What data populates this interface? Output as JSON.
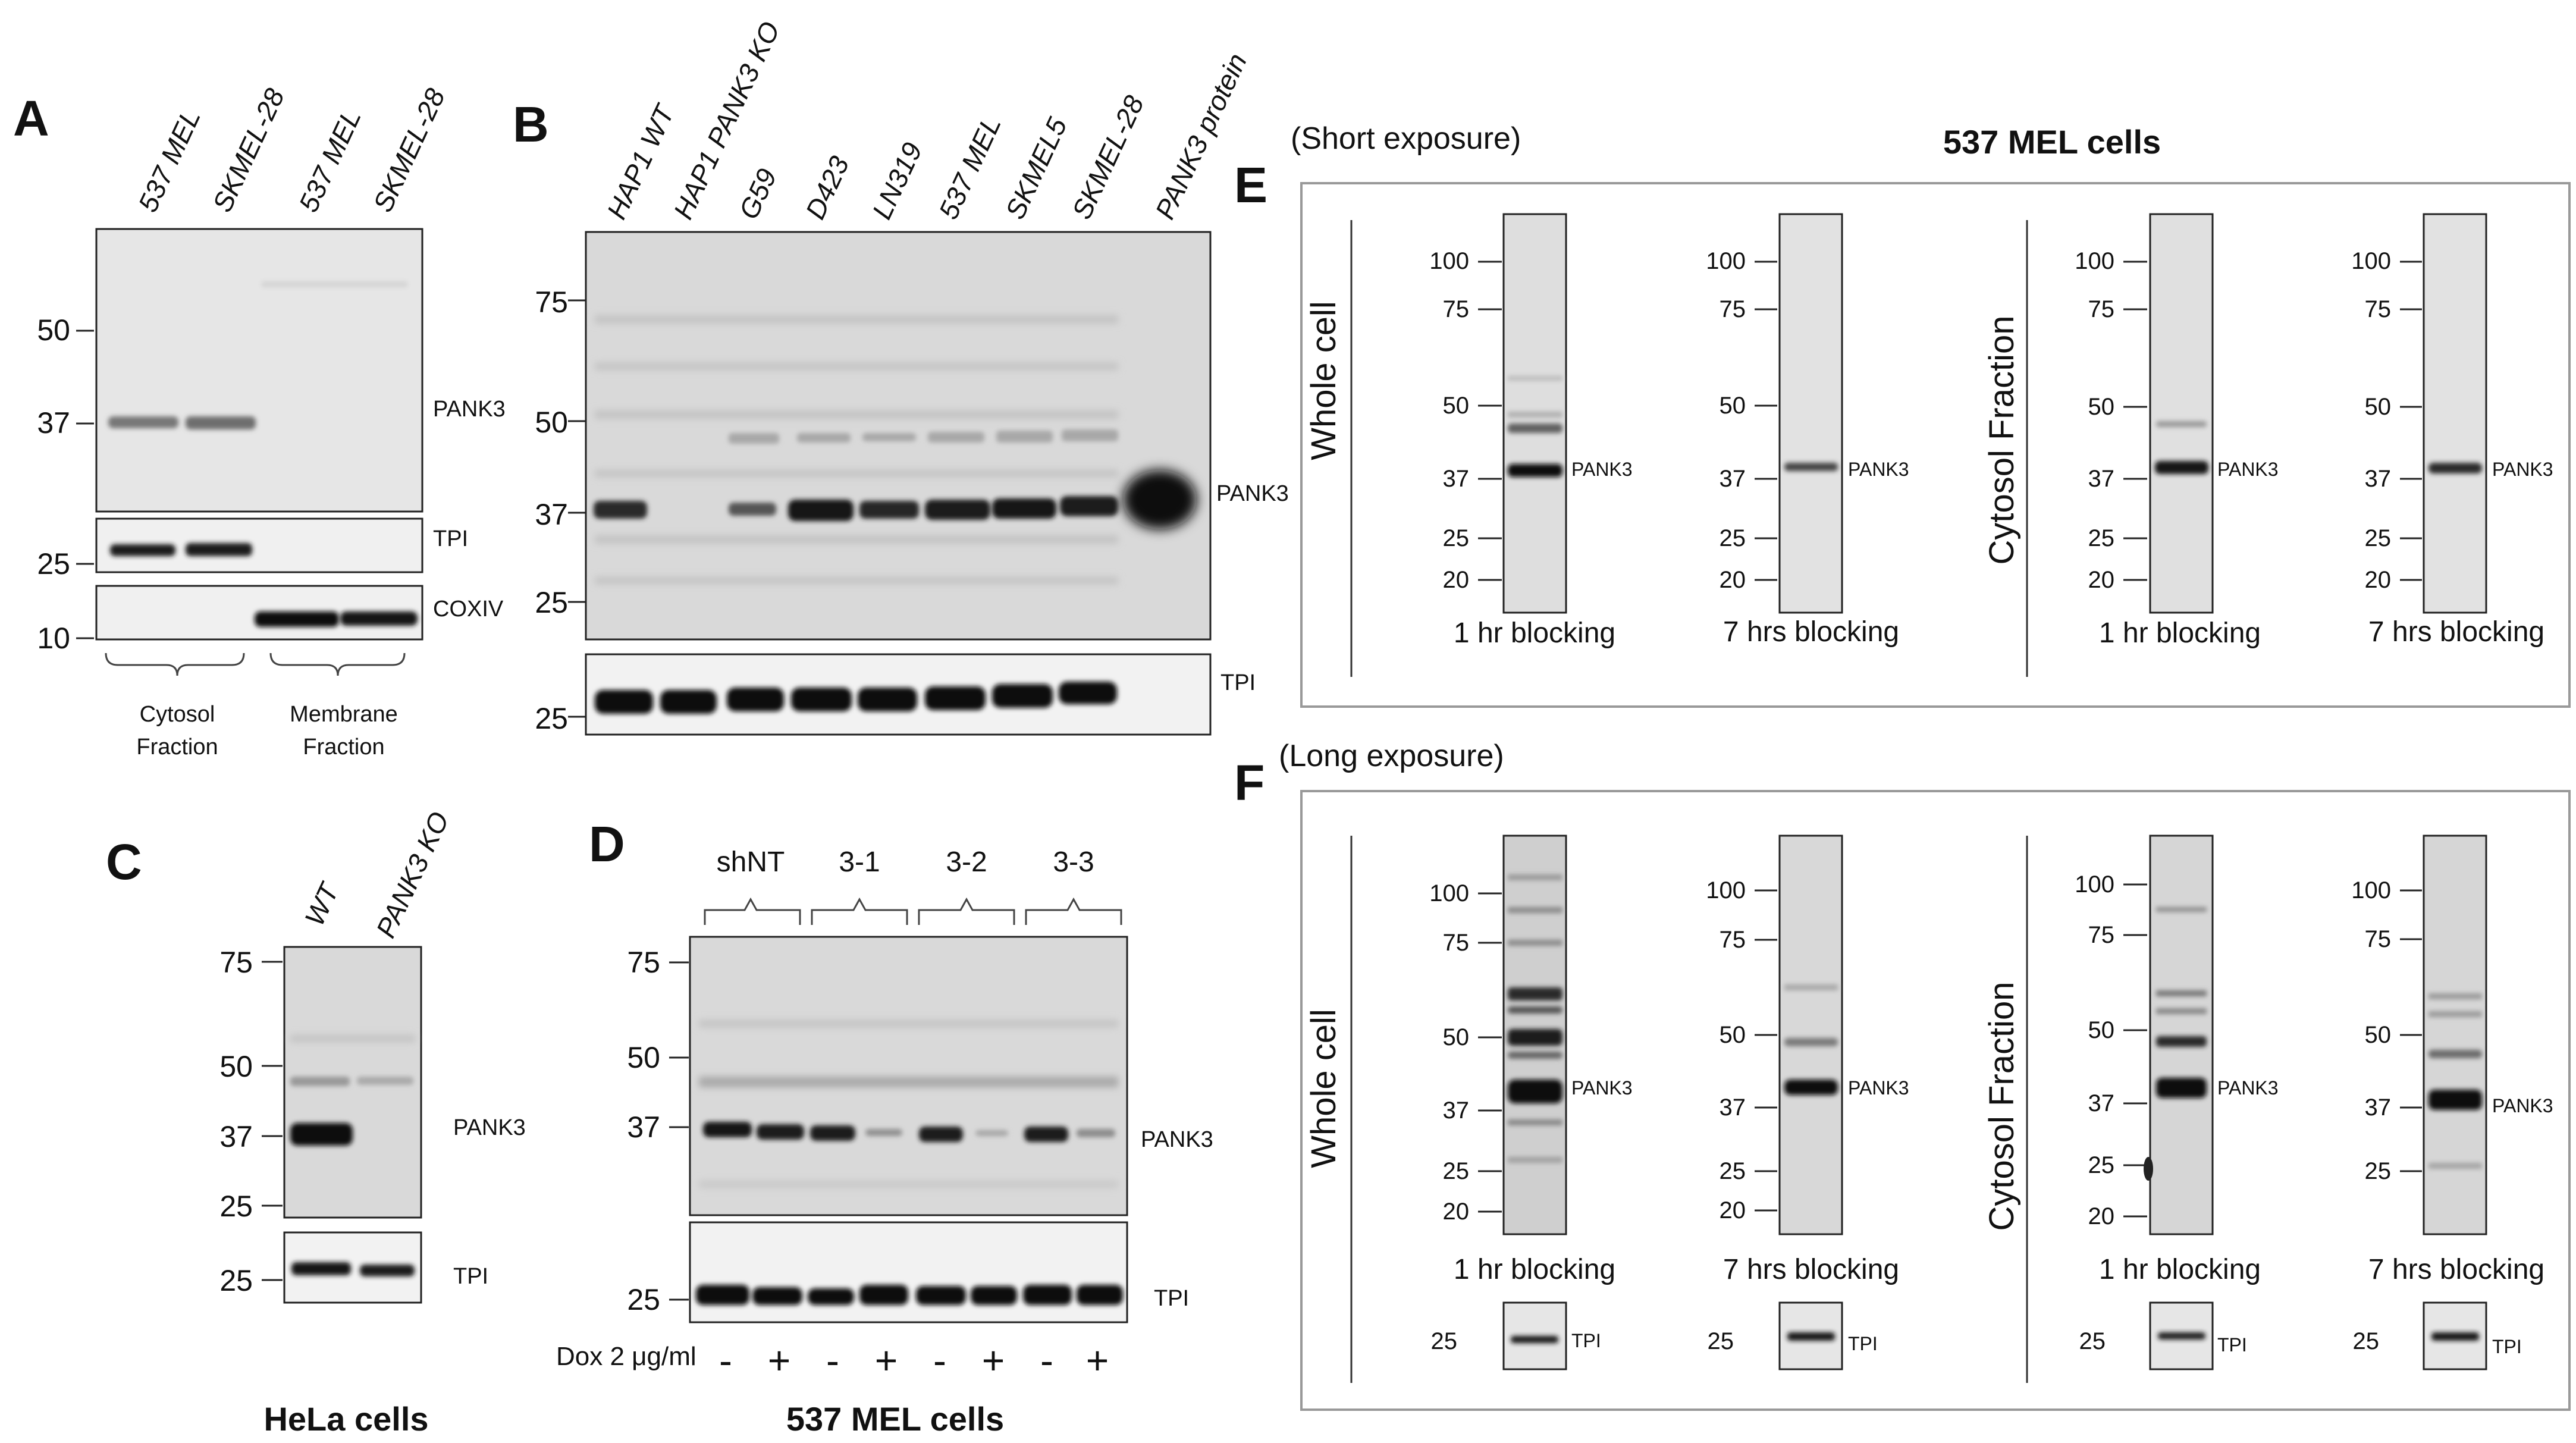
{
  "panels": {
    "A": {
      "label": "A",
      "lanes": [
        "537 MEL",
        "SKMEL-28",
        "537 MEL",
        "SKMEL-28"
      ],
      "markers_main": [
        "50",
        "37"
      ],
      "markers_tpi": [
        "25"
      ],
      "markers_coxiv": [
        "10"
      ],
      "bands": [
        "PANK3",
        "TPI",
        "COXIV"
      ],
      "groups": [
        [
          "Cytosol",
          "Fraction"
        ],
        [
          "Membrane",
          "Fraction"
        ]
      ]
    },
    "B": {
      "label": "B",
      "lanes": [
        "HAP1 WT",
        "HAP1 PANK3 KO",
        "G59",
        "D423",
        "LN319",
        "537 MEL",
        "SKMEL5",
        "SKMEL-28",
        "PANK3 protein"
      ],
      "markers_main": [
        "75",
        "50",
        "37",
        "25"
      ],
      "markers_tpi": [
        "25"
      ],
      "bands": [
        "PANK3",
        "TPI"
      ]
    },
    "C": {
      "label": "C",
      "lanes": [
        "WT",
        "PANK3 KO"
      ],
      "markers_main": [
        "75",
        "50",
        "37",
        "25"
      ],
      "markers_tpi": [
        "25"
      ],
      "bands": [
        "PANK3",
        "TPI"
      ],
      "caption": "HeLa cells"
    },
    "D": {
      "label": "D",
      "groups": [
        "shNT",
        "3-1",
        "3-2",
        "3-3"
      ],
      "markers_main": [
        "75",
        "50",
        "37"
      ],
      "markers_tpi": [
        "25"
      ],
      "bands": [
        "PANK3",
        "TPI"
      ],
      "dox_label": "Dox 2 μg/ml",
      "dox_signs": [
        "-",
        "+",
        "-",
        "+",
        "-",
        "+",
        "-",
        "+"
      ],
      "caption": "537 MEL cells"
    },
    "E": {
      "label": "E",
      "exposure": "(Short exposure)",
      "title": "537 MEL cells",
      "section_labels": [
        "Whole cell",
        "Cytosol Fraction"
      ],
      "strips": [
        {
          "markers": [
            "100",
            "75",
            "50",
            "37",
            "25",
            "20"
          ],
          "band": "PANK3",
          "condition": "1 hr blocking"
        },
        {
          "markers": [
            "100",
            "75",
            "50",
            "37",
            "25",
            "20"
          ],
          "band": "PANK3",
          "condition": "7 hrs blocking"
        },
        {
          "markers": [
            "100",
            "75",
            "50",
            "37",
            "25",
            "20"
          ],
          "band": "PANK3",
          "condition": "1 hr blocking"
        },
        {
          "markers": [
            "100",
            "75",
            "50",
            "37",
            "25",
            "20"
          ],
          "band": "PANK3",
          "condition": "7 hrs blocking"
        }
      ]
    },
    "F": {
      "label": "F",
      "exposure": "(Long exposure)",
      "section_labels": [
        "Whole cell",
        "Cytosol Fraction"
      ],
      "strips": [
        {
          "markers": [
            "100",
            "75",
            "50",
            "37",
            "25",
            "20"
          ],
          "band": "PANK3",
          "condition": "1 hr blocking",
          "tpi_marker": "25",
          "tpi_band": "TPI"
        },
        {
          "markers": [
            "100",
            "75",
            "50",
            "37",
            "25",
            "20"
          ],
          "band": "PANK3",
          "condition": "7 hrs blocking",
          "tpi_marker": "25",
          "tpi_band": "TPI"
        },
        {
          "markers": [
            "100",
            "75",
            "50",
            "37",
            "25",
            "20"
          ],
          "band": "PANK3",
          "condition": "1 hr blocking",
          "tpi_marker": "25",
          "tpi_band": "TPI"
        },
        {
          "markers": [
            "100",
            "75",
            "50",
            "37",
            "25"
          ],
          "band": "PANK3",
          "condition": "7 hrs blocking",
          "tpi_marker": "25",
          "tpi_band": "TPI"
        }
      ]
    }
  }
}
